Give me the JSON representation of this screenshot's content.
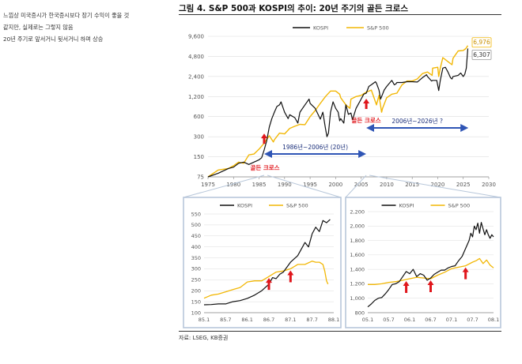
{
  "note_lines": [
    "느낌상 미국증시가 한국증시보다 장기 수익이 좋을 것",
    "같지만, 실제로는 그렇지 않음",
    "20년 주기로 앞서거니 뒷서거니 하며 상승"
  ],
  "figure_title": "그림 4. S&P 500과 KOSPI의 추이: 20년 주기의 골든 크로스",
  "source": "자료: LSEG, KB증권",
  "colors": {
    "kospi": "#111111",
    "sp500": "#f2b705",
    "arrow": "#e0161b",
    "span": "#2f55b5",
    "grid": "#dddddd"
  },
  "chart_data": [
    {
      "type": "line",
      "name": "main",
      "legend": [
        "KOSPI",
        "S&P 500"
      ],
      "x_ticks": [
        "1975",
        "1980",
        "1985",
        "1990",
        "1995",
        "2000",
        "2005",
        "2010",
        "2015",
        "2020",
        "2025",
        "2030"
      ],
      "xlim": [
        1975,
        2030
      ],
      "y_ticks": [
        "9,600",
        "4,800",
        "2,400",
        "1,200",
        "600",
        "300",
        "150",
        "75"
      ],
      "y_tick_values": [
        9600,
        4800,
        2400,
        1200,
        600,
        300,
        150,
        75
      ],
      "ylim": [
        75,
        9600
      ],
      "y_scale": "log",
      "series": [
        {
          "name": "KOSPI",
          "x": [
            1975,
            1977,
            1979,
            1980,
            1981,
            1982,
            1983,
            1984,
            1985,
            1985.5,
            1986,
            1986.5,
            1987,
            1987.5,
            1988,
            1988.5,
            1989,
            1989.3,
            1990,
            1990.7,
            1991,
            1992,
            1992.6,
            1993,
            1994,
            1994.8,
            1995,
            1996,
            1997,
            1997.5,
            1998,
            1998.3,
            1998.6,
            1999,
            1999.5,
            2000,
            2000.5,
            2000.8,
            2001,
            2001.6,
            2002,
            2002.5,
            2003,
            2003.3,
            2004,
            2005,
            2005.5,
            2006,
            2006.5,
            2007,
            2007.8,
            2008,
            2008.5,
            2008.8,
            2009,
            2009.5,
            2010,
            2011,
            2011.5,
            2011.8,
            2012,
            2013,
            2014,
            2015,
            2016,
            2017,
            2017.8,
            2018,
            2018.8,
            2019,
            2019.8,
            2020,
            2020.2,
            2020.5,
            2021,
            2021.5,
            2022,
            2022.5,
            2022.8,
            2023,
            2024,
            2024.5,
            2025,
            2025.3,
            2025.6,
            2025.9
          ],
          "values": [
            75,
            85,
            100,
            105,
            120,
            125,
            115,
            125,
            135,
            145,
            190,
            260,
            420,
            560,
            700,
            850,
            900,
            1000,
            700,
            560,
            640,
            580,
            480,
            700,
            900,
            1100,
            950,
            800,
            550,
            700,
            400,
            300,
            340,
            700,
            1000,
            800,
            700,
            520,
            560,
            480,
            900,
            650,
            680,
            540,
            800,
            1100,
            1300,
            1350,
            1700,
            1800,
            2000,
            1900,
            1500,
            1100,
            1200,
            1500,
            1700,
            2100,
            1800,
            1850,
            1950,
            1950,
            2000,
            2000,
            1980,
            2300,
            2550,
            2400,
            2050,
            2100,
            2100,
            1750,
            1480,
            2100,
            3200,
            3300,
            2800,
            2300,
            2200,
            2400,
            2500,
            2700,
            2400,
            2600,
            3200,
            6307
          ]
        },
        {
          "name": "S&P 500",
          "x": [
            1975,
            1977,
            1979,
            1980,
            1981,
            1982,
            1983,
            1984,
            1985,
            1986,
            1987,
            1987.8,
            1988,
            1989,
            1990,
            1991,
            1992,
            1993,
            1994,
            1995,
            1996,
            1997,
            1998,
            1999,
            2000,
            2000.8,
            2001,
            2002,
            2002.8,
            2003,
            2004,
            2005,
            2006,
            2007,
            2008,
            2008.5,
            2009,
            2009.2,
            2010,
            2011,
            2012,
            2013,
            2014,
            2015,
            2016,
            2017,
            2018,
            2018.9,
            2019,
            2020,
            2020.2,
            2020.5,
            2021,
            2022,
            2022.8,
            2023,
            2024,
            2025,
            2025.5,
            2025.9
          ],
          "values": [
            75,
            95,
            100,
            110,
            125,
            120,
            160,
            165,
            195,
            240,
            310,
            250,
            270,
            340,
            330,
            400,
            430,
            460,
            455,
            600,
            740,
            950,
            1200,
            1450,
            1450,
            1300,
            1150,
            900,
            800,
            1100,
            1200,
            1250,
            1400,
            1500,
            900,
            1250,
            700,
            800,
            1150,
            1300,
            1350,
            1800,
            2050,
            2050,
            2200,
            2650,
            2800,
            2500,
            3200,
            3300,
            2400,
            3200,
            4600,
            4000,
            3600,
            4500,
            5800,
            5900,
            6300,
            6976
          ]
        }
      ],
      "end_labels": [
        "6,976",
        "6,307"
      ],
      "annotations": {
        "golden_cross_label_1": "골든 크로스",
        "golden_cross_label_2": "골든 크로스",
        "golden_cross_years": [
          1986,
          2006
        ],
        "span_1": {
          "label": "1986년~2006년 (20년)",
          "from": 1986,
          "to": 2006
        },
        "span_2": {
          "label": "2006년~2026년 ?",
          "from": 2006,
          "to": 2026
        }
      }
    },
    {
      "type": "line",
      "name": "inset-1986",
      "legend": [
        "KOSPI",
        "S&P 500"
      ],
      "x_ticks": [
        "85.1",
        "85.7",
        "86.1",
        "86.7",
        "87.1",
        "87.7",
        "88.1"
      ],
      "xlim": [
        0,
        36
      ],
      "y_ticks": [
        "550",
        "500",
        "450",
        "400",
        "350",
        "300",
        "250",
        "200",
        "150",
        "100"
      ],
      "y_tick_values": [
        550,
        500,
        450,
        400,
        350,
        300,
        250,
        200,
        150,
        100
      ],
      "ylim": [
        100,
        550
      ],
      "series": [
        {
          "name": "KOSPI",
          "x": [
            0,
            2,
            4,
            6,
            8,
            10,
            12,
            14,
            16,
            18,
            19,
            20,
            21,
            22,
            24,
            26,
            28,
            29,
            30,
            31,
            32,
            33,
            34,
            35
          ],
          "values": [
            136,
            137,
            140,
            140,
            150,
            155,
            165,
            180,
            200,
            230,
            260,
            255,
            275,
            285,
            330,
            360,
            420,
            400,
            460,
            490,
            470,
            520,
            510,
            525
          ]
        },
        {
          "name": "S&P 500",
          "x": [
            0,
            2,
            4,
            6,
            8,
            10,
            12,
            14,
            16,
            18,
            20,
            22,
            24,
            26,
            28,
            30,
            31,
            32,
            33,
            33.5,
            34,
            34.4
          ],
          "values": [
            166,
            180,
            185,
            195,
            205,
            215,
            240,
            245,
            245,
            265,
            285,
            290,
            300,
            320,
            320,
            335,
            330,
            330,
            320,
            290,
            245,
            230
          ]
        }
      ],
      "arrow_positions": [
        18,
        24
      ]
    },
    {
      "type": "line",
      "name": "inset-2006",
      "legend": [
        "KOSPI",
        "S&P 500"
      ],
      "x_ticks": [
        "05.1",
        "05.7",
        "06.1",
        "06.7",
        "07.1",
        "07.7",
        "08.1"
      ],
      "xlim": [
        0,
        36
      ],
      "y_ticks": [
        "2,200",
        "2,000",
        "1,800",
        "1,600",
        "1,400",
        "1,200",
        "1,000",
        "800"
      ],
      "y_tick_values": [
        2200,
        2000,
        1800,
        1600,
        1400,
        1200,
        1000,
        800
      ],
      "ylim": [
        800,
        2200
      ],
      "series": [
        {
          "name": "KOSPI",
          "x": [
            0,
            1,
            2,
            3,
            4,
            5,
            6,
            7,
            8,
            9,
            10,
            11,
            12,
            13,
            14,
            15,
            16,
            17,
            18,
            19,
            20,
            21,
            22,
            23,
            24,
            25,
            26,
            27,
            28,
            29,
            29.5,
            30,
            30.5,
            31,
            31.5,
            32,
            32.5,
            33,
            33.5,
            34,
            34.5,
            35,
            35.5,
            36
          ],
          "values": [
            880,
            920,
            970,
            1000,
            1010,
            1060,
            1120,
            1190,
            1200,
            1230,
            1300,
            1370,
            1340,
            1400,
            1300,
            1340,
            1320,
            1250,
            1280,
            1330,
            1360,
            1390,
            1390,
            1420,
            1440,
            1450,
            1520,
            1580,
            1690,
            1800,
            1900,
            1850,
            2000,
            1950,
            2040,
            1900,
            2050,
            1960,
            1880,
            1950,
            1880,
            1830,
            1880,
            1850
          ]
        },
        {
          "name": "S&P 500",
          "x": [
            0,
            2,
            4,
            6,
            8,
            10,
            12,
            14,
            16,
            18,
            20,
            22,
            24,
            26,
            28,
            30,
            31,
            32,
            33,
            34,
            35,
            36
          ],
          "values": [
            1190,
            1190,
            1200,
            1220,
            1230,
            1250,
            1270,
            1290,
            1280,
            1270,
            1320,
            1360,
            1410,
            1430,
            1450,
            1500,
            1520,
            1550,
            1480,
            1530,
            1460,
            1420
          ]
        }
      ],
      "arrow_positions": [
        11,
        18,
        28
      ]
    }
  ]
}
